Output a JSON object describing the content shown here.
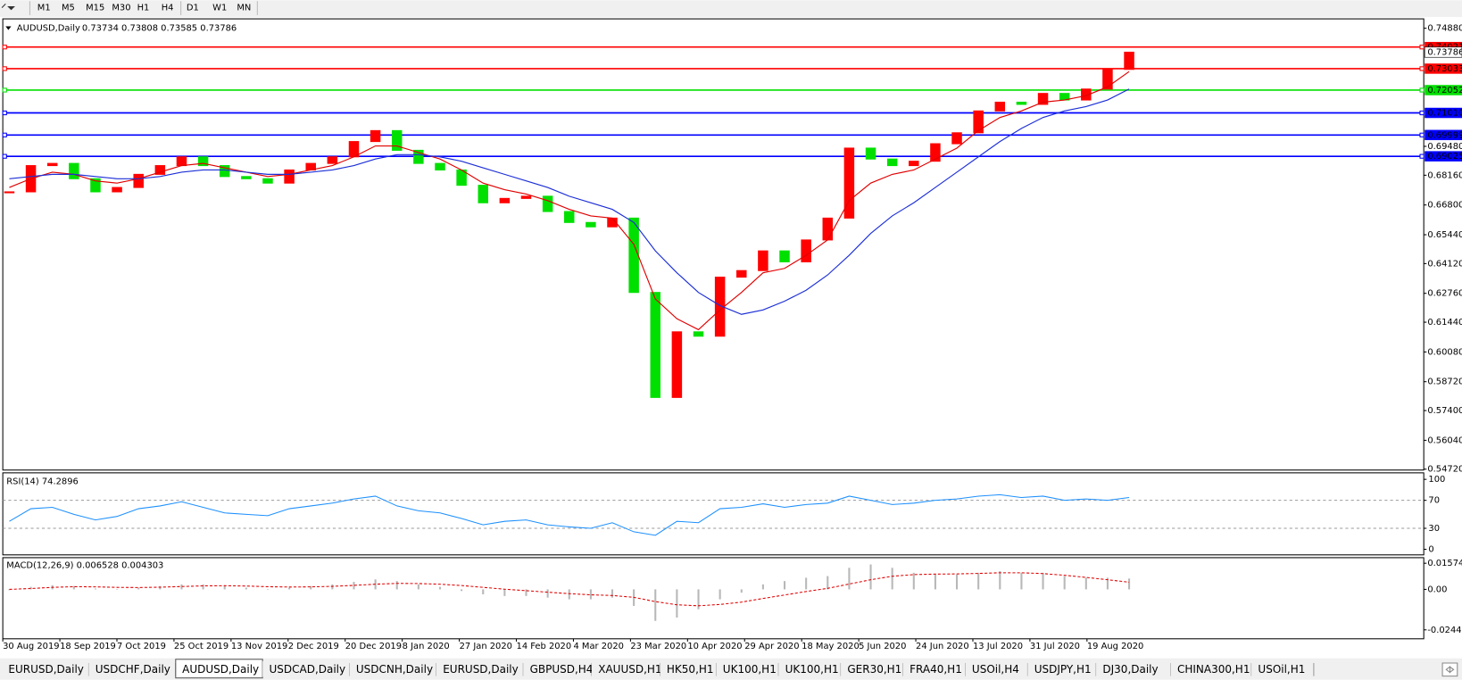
{
  "toolbar": {
    "timeframes": [
      "M1",
      "M5",
      "M15",
      "M30",
      "H1",
      "H4",
      "D1",
      "W1",
      "MN"
    ]
  },
  "chart_data": {
    "type": "candlestick",
    "title": "AUDUSD,Daily",
    "ohlc_text": "0.73734 0.73808 0.73585 0.73786",
    "up_color": "#ff0000",
    "down_color": "#00e000",
    "close": [
      0.674,
      0.686,
      0.687,
      0.68,
      0.674,
      0.676,
      0.682,
      0.686,
      0.69,
      0.686,
      0.681,
      0.68,
      0.678,
      0.684,
      0.687,
      0.69,
      0.697,
      0.702,
      0.693,
      0.687,
      0.684,
      0.677,
      0.669,
      0.671,
      0.672,
      0.665,
      0.66,
      0.658,
      0.662,
      0.628,
      0.58,
      0.61,
      0.608,
      0.635,
      0.638,
      0.647,
      0.642,
      0.652,
      0.662,
      0.694,
      0.689,
      0.686,
      0.688,
      0.696,
      0.701,
      0.711,
      0.715,
      0.714,
      0.719,
      0.716,
      0.721,
      0.73,
      0.73786
    ],
    "moving_averages": [
      {
        "color": "#e00000",
        "values": [
          0.676,
          0.68,
          0.683,
          0.682,
          0.679,
          0.678,
          0.68,
          0.683,
          0.686,
          0.687,
          0.685,
          0.683,
          0.681,
          0.682,
          0.684,
          0.686,
          0.69,
          0.695,
          0.695,
          0.692,
          0.689,
          0.684,
          0.678,
          0.675,
          0.673,
          0.67,
          0.666,
          0.663,
          0.662,
          0.65,
          0.625,
          0.616,
          0.611,
          0.62,
          0.628,
          0.637,
          0.639,
          0.645,
          0.652,
          0.67,
          0.678,
          0.682,
          0.684,
          0.689,
          0.694,
          0.702,
          0.708,
          0.711,
          0.715,
          0.716,
          0.718,
          0.722,
          0.729
        ]
      },
      {
        "color": "#1c2fd6",
        "values": [
          0.68,
          0.681,
          0.682,
          0.682,
          0.681,
          0.68,
          0.68,
          0.681,
          0.683,
          0.684,
          0.684,
          0.683,
          0.682,
          0.682,
          0.683,
          0.684,
          0.686,
          0.689,
          0.691,
          0.691,
          0.69,
          0.688,
          0.685,
          0.682,
          0.679,
          0.676,
          0.672,
          0.669,
          0.666,
          0.66,
          0.647,
          0.637,
          0.628,
          0.622,
          0.618,
          0.62,
          0.624,
          0.629,
          0.636,
          0.645,
          0.655,
          0.663,
          0.669,
          0.676,
          0.683,
          0.69,
          0.697,
          0.703,
          0.708,
          0.711,
          0.713,
          0.716,
          0.721
        ]
      }
    ],
    "levels": [
      {
        "value": 0.74021,
        "color": "#ff0000"
      },
      {
        "value": 0.73033,
        "color": "#ff0000"
      },
      {
        "value": 0.72052,
        "color": "#00e000"
      },
      {
        "value": 0.7101,
        "label": "0.71010",
        "color": "#0000ff"
      },
      {
        "value": 0.69999,
        "color": "#0000ff"
      },
      {
        "value": 0.69025,
        "color": "#0000ff"
      }
    ],
    "current_price": 0.73786,
    "ylim": [
      0.5468,
      0.7531
    ],
    "yticks": [
      {
        "value": 0.7488,
        "label": "0.74880"
      },
      {
        "value": 0.6948,
        "label": "0.69480"
      },
      {
        "value": 0.6816,
        "label": "0.68160"
      },
      {
        "value": 0.668,
        "label": "0.66800"
      },
      {
        "value": 0.6544,
        "label": "0.65440"
      },
      {
        "value": 0.6412,
        "label": "0.64120"
      },
      {
        "value": 0.6276,
        "label": "0.62760"
      },
      {
        "value": 0.6144,
        "label": "0.61440"
      },
      {
        "value": 0.6008,
        "label": "0.60080"
      },
      {
        "value": 0.5872,
        "label": "0.58720"
      },
      {
        "value": 0.574,
        "label": "0.57400"
      },
      {
        "value": 0.5604,
        "label": "0.56040"
      },
      {
        "value": 0.5472,
        "label": "0.54720"
      }
    ],
    "x_labels": [
      "30 Aug 2019",
      "18 Sep 2019",
      "7 Oct 2019",
      "25 Oct 2019",
      "13 Nov 2019",
      "2 Dec 2019",
      "20 Dec 2019",
      "8 Jan 2020",
      "27 Jan 2020",
      "14 Feb 2020",
      "4 Mar 2020",
      "23 Mar 2020",
      "10 Apr 2020",
      "29 Apr 2020",
      "18 May 2020",
      "5 Jun 2020",
      "24 Jun 2020",
      "13 Jul 2020",
      "31 Jul 2020",
      "19 Aug 2020"
    ]
  },
  "rsi": {
    "label": "RSI(14) 74.2896",
    "color": "#1e90ff",
    "values": [
      40,
      58,
      60,
      50,
      42,
      47,
      58,
      62,
      68,
      60,
      52,
      50,
      48,
      58,
      62,
      66,
      72,
      76,
      62,
      55,
      52,
      44,
      35,
      40,
      42,
      35,
      32,
      30,
      38,
      25,
      20,
      40,
      38,
      58,
      60,
      65,
      60,
      64,
      66,
      76,
      70,
      64,
      66,
      70,
      72,
      76,
      78,
      74,
      76,
      70,
      72,
      70,
      74
    ],
    "ylim": [
      -8,
      109.3
    ],
    "yticks": [
      100,
      70,
      30,
      0
    ],
    "levels": [
      70,
      30
    ]
  },
  "macd": {
    "label": "MACD(12,26,9) 0.006528 0.004303",
    "histogram_color": "#b8b8b8",
    "signal_color": "#e00000",
    "histogram": [
      -0.0005,
      0.0015,
      0.0025,
      0.002,
      0.0005,
      0,
      0.001,
      0.002,
      0.003,
      0.003,
      0.002,
      0.001,
      0,
      0.001,
      0.002,
      0.003,
      0.0045,
      0.006,
      0.005,
      0.003,
      0.0015,
      -0.001,
      -0.003,
      -0.004,
      -0.004,
      -0.005,
      -0.006,
      -0.006,
      -0.005,
      -0.01,
      -0.019,
      -0.017,
      -0.012,
      -0.006,
      -0.002,
      0.003,
      0.005,
      0.007,
      0.008,
      0.013,
      0.015,
      0.013,
      0.01,
      0.009,
      0.009,
      0.01,
      0.011,
      0.01,
      0.01,
      0.008,
      0.007,
      0.007,
      0.006528
    ],
    "signal": [
      0,
      0.0005,
      0.0012,
      0.0016,
      0.0015,
      0.0012,
      0.0011,
      0.0013,
      0.0017,
      0.0021,
      0.0022,
      0.002,
      0.0016,
      0.0014,
      0.0015,
      0.0018,
      0.0024,
      0.0031,
      0.0036,
      0.0035,
      0.0031,
      0.0023,
      0.0012,
      0.0001,
      -0.0008,
      -0.0017,
      -0.0026,
      -0.0033,
      -0.0037,
      -0.0048,
      -0.0074,
      -0.0093,
      -0.0099,
      -0.0091,
      -0.0077,
      -0.0055,
      -0.0034,
      -0.0013,
      0.0006,
      0.0032,
      0.0058,
      0.0079,
      0.0089,
      0.0092,
      0.0093,
      0.0096,
      0.01,
      0.01,
      0.0095,
      0.0085,
      0.0072,
      0.0058,
      0.004303
    ],
    "ylim": [
      -0.0298,
      0.0191
    ],
    "yticks": [
      0.015741,
      {
        "value": 0,
        "label": "0.00"
      },
      -0.024412
    ]
  },
  "tabs": {
    "items": [
      "EURUSD,Daily",
      "USDCHF,Daily",
      "AUDUSD,Daily",
      "USDCAD,Daily",
      "USDCNH,Daily",
      "EURUSD,Daily",
      "GBPUSD,H4",
      "XAUUSD,H1",
      "HK50,H1",
      "UK100,H1",
      "UK100,H1",
      "GER30,H1",
      "FRA40,H1",
      "USOil,H4",
      "USDJPY,H1",
      "DJ30,Daily",
      "CHINA300,H1",
      "USOil,H1"
    ],
    "active": 2
  }
}
